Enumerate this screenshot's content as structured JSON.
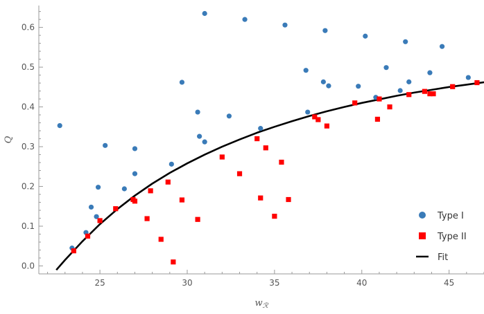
{
  "chart_data": {
    "type": "scatter",
    "title": "",
    "xlabel": "w",
    "xlabel_sub": "ℛ",
    "ylabel": "Q",
    "xlim": [
      21.5,
      47
    ],
    "ylim": [
      -0.02,
      0.655
    ],
    "x_ticks": [
      25,
      30,
      35,
      40,
      45
    ],
    "y_ticks": [
      0.0,
      0.1,
      0.2,
      0.3,
      0.4,
      0.5,
      0.6
    ],
    "grid": false,
    "legend_position": "bottom-right",
    "colors": {
      "type1": "#3a7bb8",
      "type2": "#ff0000",
      "fit": "#000000",
      "axis": "#999999"
    },
    "series": [
      {
        "name": "Type I",
        "marker": "circle",
        "points": [
          [
            22.7,
            0.353
          ],
          [
            23.4,
            0.045
          ],
          [
            24.2,
            0.084
          ],
          [
            24.5,
            0.148
          ],
          [
            24.8,
            0.124
          ],
          [
            24.9,
            0.198
          ],
          [
            25.3,
            0.303
          ],
          [
            26.4,
            0.194
          ],
          [
            27.0,
            0.295
          ],
          [
            27.0,
            0.232
          ],
          [
            29.1,
            0.256
          ],
          [
            29.7,
            0.462
          ],
          [
            30.6,
            0.387
          ],
          [
            30.7,
            0.326
          ],
          [
            31.0,
            0.312
          ],
          [
            31.0,
            0.635
          ],
          [
            32.4,
            0.377
          ],
          [
            33.3,
            0.62
          ],
          [
            34.2,
            0.346
          ],
          [
            35.6,
            0.606
          ],
          [
            36.8,
            0.492
          ],
          [
            36.9,
            0.387
          ],
          [
            37.8,
            0.463
          ],
          [
            37.9,
            0.592
          ],
          [
            38.1,
            0.453
          ],
          [
            39.8,
            0.452
          ],
          [
            40.2,
            0.578
          ],
          [
            40.8,
            0.424
          ],
          [
            41.4,
            0.499
          ],
          [
            42.2,
            0.441
          ],
          [
            42.5,
            0.564
          ],
          [
            42.7,
            0.463
          ],
          [
            43.9,
            0.486
          ],
          [
            44.6,
            0.552
          ],
          [
            46.1,
            0.474
          ]
        ]
      },
      {
        "name": "Type II",
        "marker": "square",
        "points": [
          [
            23.5,
            0.038
          ],
          [
            24.3,
            0.075
          ],
          [
            25.0,
            0.114
          ],
          [
            25.9,
            0.144
          ],
          [
            26.9,
            0.167
          ],
          [
            27.0,
            0.163
          ],
          [
            27.7,
            0.119
          ],
          [
            27.9,
            0.189
          ],
          [
            28.5,
            0.067
          ],
          [
            28.9,
            0.211
          ],
          [
            29.2,
            0.01
          ],
          [
            29.7,
            0.166
          ],
          [
            30.6,
            0.117
          ],
          [
            32.0,
            0.274
          ],
          [
            33.0,
            0.232
          ],
          [
            34.0,
            0.32
          ],
          [
            34.2,
            0.171
          ],
          [
            34.5,
            0.297
          ],
          [
            35.0,
            0.125
          ],
          [
            35.4,
            0.261
          ],
          [
            35.8,
            0.167
          ],
          [
            37.3,
            0.375
          ],
          [
            37.5,
            0.368
          ],
          [
            38.0,
            0.352
          ],
          [
            39.6,
            0.41
          ],
          [
            40.9,
            0.369
          ],
          [
            41.0,
            0.42
          ],
          [
            41.6,
            0.4
          ],
          [
            42.7,
            0.431
          ],
          [
            43.6,
            0.439
          ],
          [
            43.9,
            0.433
          ],
          [
            44.1,
            0.433
          ],
          [
            45.2,
            0.451
          ],
          [
            46.6,
            0.461
          ]
        ]
      },
      {
        "name": "Fit",
        "marker": "line",
        "points": [
          [
            22.5,
            -0.01
          ],
          [
            23.0,
            0.015
          ],
          [
            24.0,
            0.062
          ],
          [
            25.0,
            0.105
          ],
          [
            26.0,
            0.143
          ],
          [
            27.0,
            0.177
          ],
          [
            28.0,
            0.207
          ],
          [
            29.0,
            0.234
          ],
          [
            30.0,
            0.258
          ],
          [
            31.0,
            0.28
          ],
          [
            32.0,
            0.3
          ],
          [
            33.0,
            0.318
          ],
          [
            34.0,
            0.335
          ],
          [
            35.0,
            0.35
          ],
          [
            36.0,
            0.364
          ],
          [
            37.0,
            0.377
          ],
          [
            38.0,
            0.389
          ],
          [
            39.0,
            0.4
          ],
          [
            40.0,
            0.41
          ],
          [
            41.0,
            0.419
          ],
          [
            42.0,
            0.428
          ],
          [
            43.0,
            0.436
          ],
          [
            44.0,
            0.443
          ],
          [
            45.0,
            0.45
          ],
          [
            46.0,
            0.456
          ],
          [
            47.0,
            0.462
          ]
        ]
      }
    ]
  }
}
